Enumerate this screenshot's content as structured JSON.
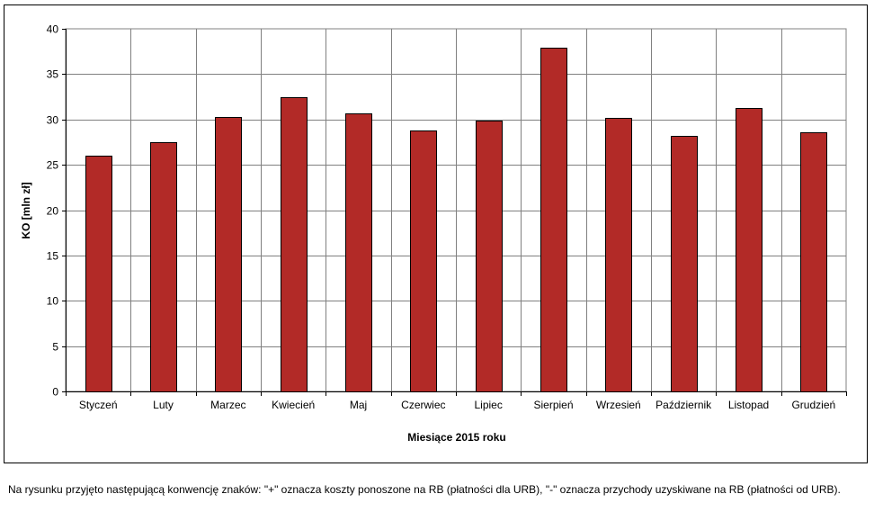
{
  "chart_data": {
    "type": "bar",
    "categories": [
      "Styczeń",
      "Luty",
      "Marzec",
      "Kwiecień",
      "Maj",
      "Czerwiec",
      "Lipiec",
      "Sierpień",
      "Wrzesień",
      "Październik",
      "Listopad",
      "Grudzień"
    ],
    "values": [
      26.0,
      27.5,
      30.3,
      32.5,
      30.7,
      28.8,
      29.9,
      37.9,
      30.2,
      28.2,
      31.3,
      28.6
    ],
    "xlabel": "Miesiące 2015 roku",
    "ylabel": "KO [mln zł]",
    "ylim": [
      0,
      40
    ],
    "yticks": [
      "0",
      "5",
      "10",
      "15",
      "20",
      "25",
      "30",
      "35",
      "40"
    ],
    "grid": true,
    "bar_color": "#b22a27",
    "bar_edge_color": "#000000",
    "grid_color": "#808080"
  },
  "caption": "Na rysunku przyjęto następującą konwencję znaków: \"+\" oznacza koszty ponoszone na RB (płatności dla URB), \"-\" oznacza przychody uzyskiwane na RB (płatności od URB)."
}
